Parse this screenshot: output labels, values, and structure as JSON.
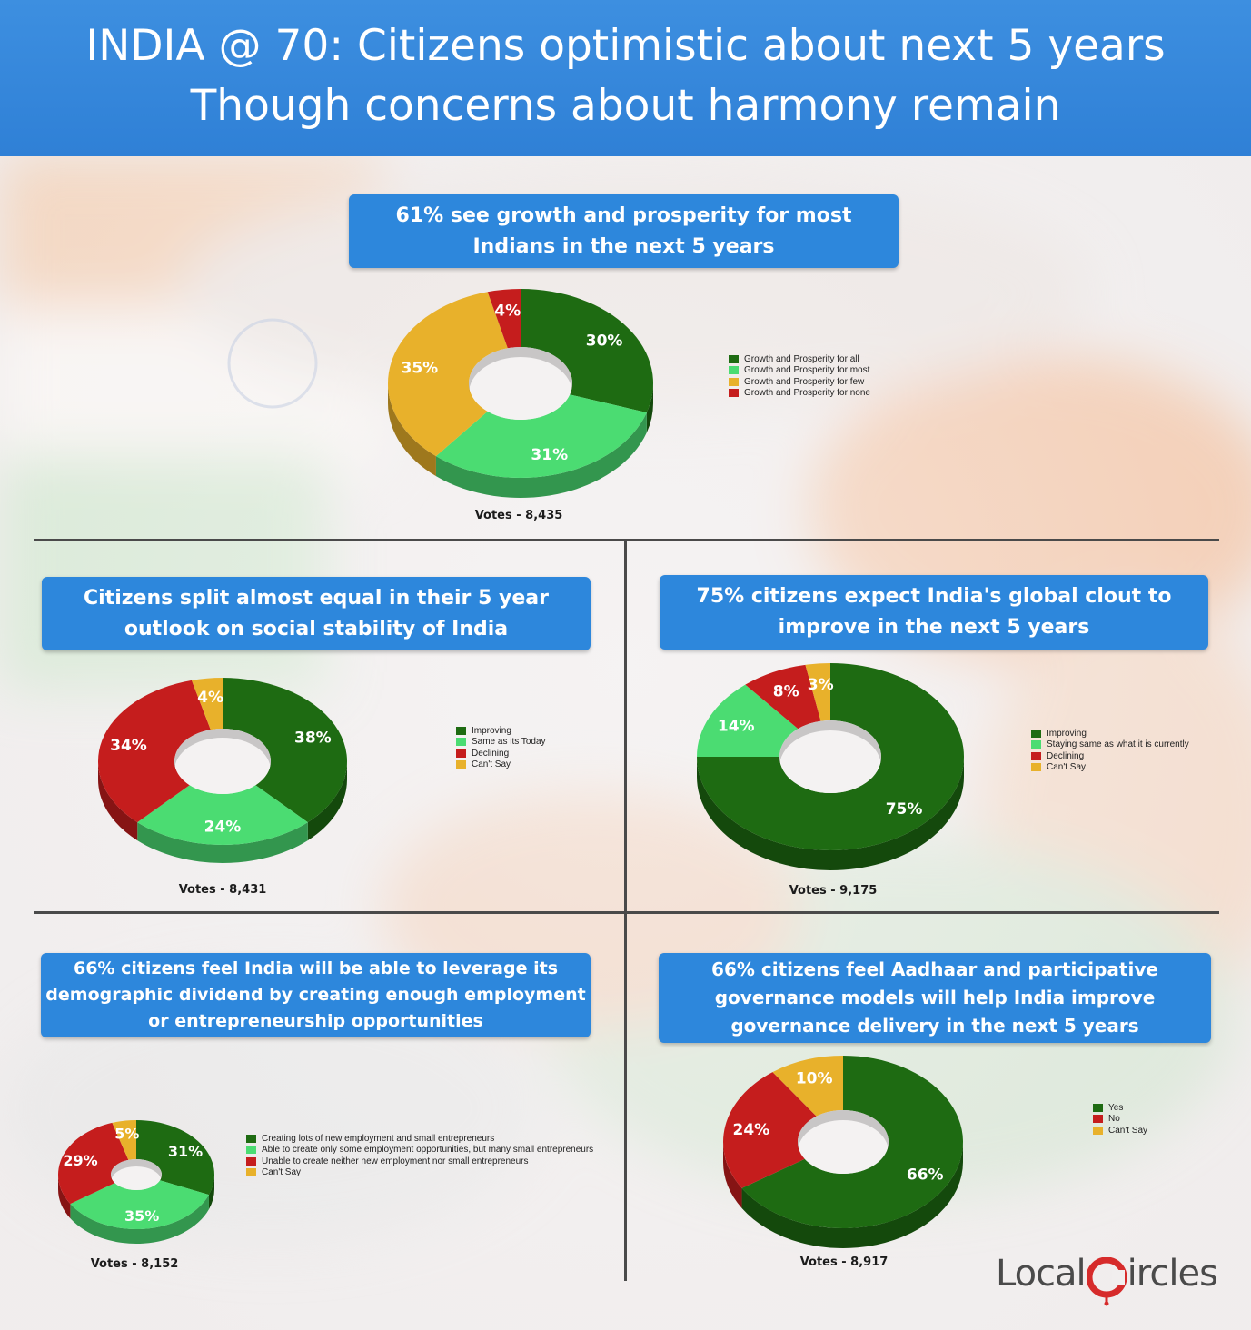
{
  "page": {
    "title_line1": "INDIA @ 70: Citizens optimistic about next 5 years",
    "title_line2": "Though concerns about harmony remain"
  },
  "colors": {
    "dark_green": "#1e6b12",
    "light_green": "#4bdc72",
    "red": "#c51d1d",
    "yellow": "#e8b12b",
    "banner_blue": "#2d87dc"
  },
  "chart_data": [
    {
      "type": "pie",
      "title_lines": [
        "61% see growth and prosperity for most",
        "Indians in the next 5 years"
      ],
      "categories": [
        "Growth and Prosperity for all",
        "Growth and Prosperity for most",
        "Growth and Prosperity for few",
        "Growth and Prosperity for none"
      ],
      "values": [
        30,
        31,
        35,
        4
      ],
      "value_labels": [
        "30%",
        "31%",
        "35%",
        "4%"
      ],
      "colors": [
        "#1e6b12",
        "#4bdc72",
        "#e8b12b",
        "#c51d1d"
      ],
      "votes_label": "Votes - 8,435",
      "legend_placement": "right"
    },
    {
      "type": "pie",
      "title_lines": [
        "Citizens split almost equal in their 5 year",
        "outlook on social stability of India"
      ],
      "categories": [
        "Improving",
        "Same as its Today",
        "Declining",
        "Can't Say"
      ],
      "values": [
        38,
        24,
        34,
        4
      ],
      "value_labels": [
        "38%",
        "24%",
        "34%",
        "4%"
      ],
      "colors": [
        "#1e6b12",
        "#4bdc72",
        "#c51d1d",
        "#e8b12b"
      ],
      "votes_label": "Votes - 8,431",
      "legend_placement": "right"
    },
    {
      "type": "pie",
      "title_lines": [
        "75% citizens expect India's global clout to",
        "improve in the next 5 years"
      ],
      "categories": [
        "Improving",
        "Staying same as what it is currently",
        "Declining",
        "Can't Say"
      ],
      "values": [
        75,
        14,
        8,
        3
      ],
      "value_labels": [
        "75%",
        "14%",
        "8%",
        "3%"
      ],
      "colors": [
        "#1e6b12",
        "#4bdc72",
        "#c51d1d",
        "#e8b12b"
      ],
      "votes_label": "Votes - 9,175",
      "legend_placement": "right"
    },
    {
      "type": "pie",
      "title_lines": [
        "66% citizens feel India will be able to leverage its",
        "demographic dividend by creating enough employment",
        "or entrepreneurship opportunities"
      ],
      "categories": [
        "Creating lots of new employment and small entrepreneurs",
        "Able to create only some employment opportunities, but many small entrepreneurs",
        "Unable to create neither new employment nor small entrepreneurs",
        "Can't Say"
      ],
      "values": [
        31,
        35,
        29,
        5
      ],
      "value_labels": [
        "31%",
        "35%",
        "29%",
        "5%"
      ],
      "colors": [
        "#1e6b12",
        "#4bdc72",
        "#c51d1d",
        "#e8b12b"
      ],
      "votes_label": "Votes - 8,152",
      "legend_placement": "right"
    },
    {
      "type": "pie",
      "title_lines": [
        "66% citizens feel Aadhaar and participative",
        "governance models will help India improve",
        "governance delivery in the next 5 years"
      ],
      "categories": [
        "Yes",
        "No",
        "Can't Say"
      ],
      "values": [
        66,
        24,
        10
      ],
      "value_labels": [
        "66%",
        "24%",
        "10%"
      ],
      "colors": [
        "#1e6b12",
        "#c51d1d",
        "#e8b12b"
      ],
      "votes_label": "Votes - 8,917",
      "legend_placement": "right"
    }
  ],
  "logo": {
    "text_left": "Local",
    "text_right": "ircles"
  }
}
